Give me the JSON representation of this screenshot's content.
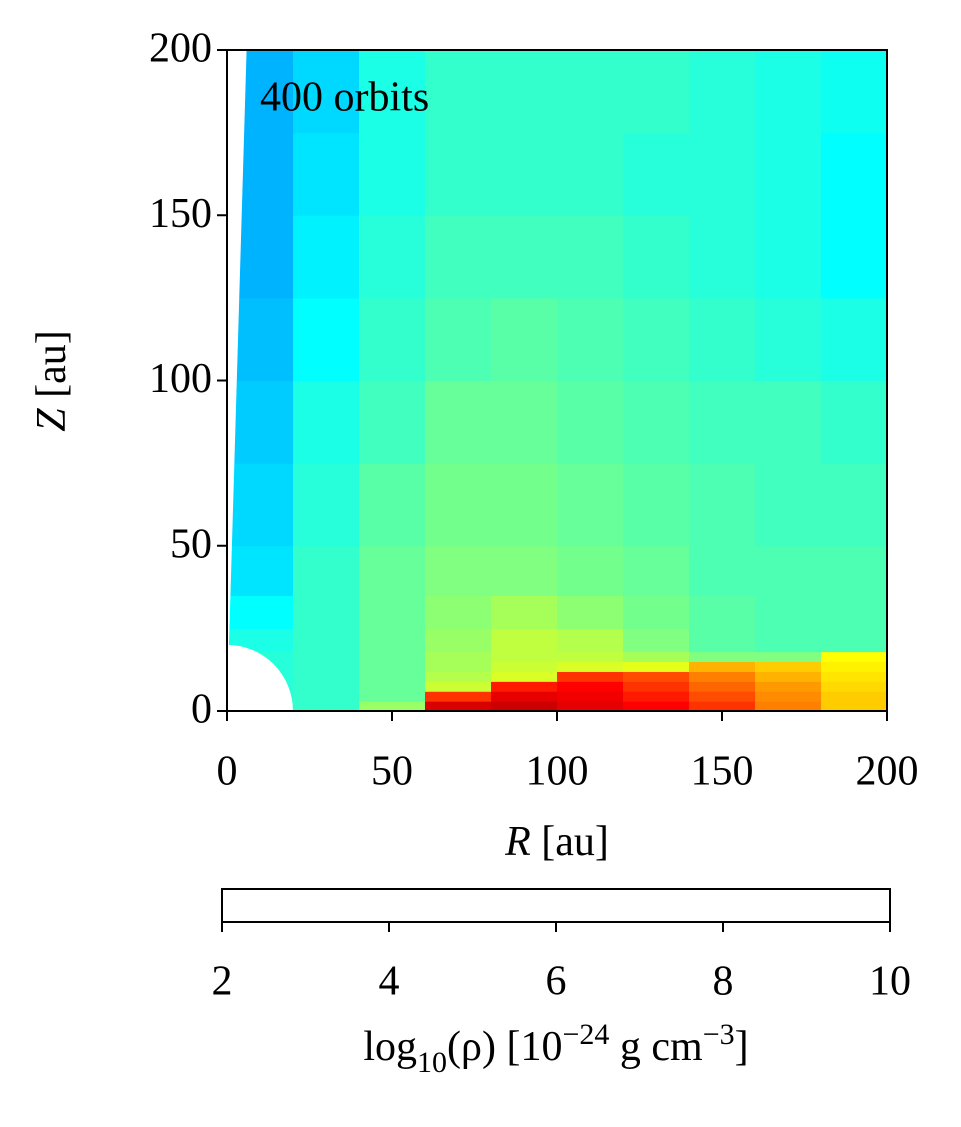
{
  "chart_data": {
    "type": "heatmap",
    "annotation": "400 orbits",
    "xlabel": [
      "R",
      " [au]"
    ],
    "ylabel": [
      "Z",
      " [au]"
    ],
    "xlim": [
      0,
      200
    ],
    "ylim": [
      0,
      200
    ],
    "xticks": [
      0,
      50,
      100,
      150,
      200
    ],
    "yticks": [
      0,
      50,
      100,
      150,
      200
    ],
    "colormap": "jet",
    "clim": [
      2,
      10
    ],
    "cticks": [
      2,
      4,
      6,
      8,
      10
    ],
    "colorbar_label": [
      "log",
      "10",
      "(ρ) [10",
      "−24",
      " g cm",
      "−3",
      "]"
    ],
    "inner_boundary_radius": 20,
    "polar_cutoff_deg": 1.7,
    "x_edges": [
      0,
      20,
      40,
      60,
      80,
      100,
      120,
      140,
      160,
      180,
      200
    ],
    "y_edges": [
      0,
      3,
      6,
      9,
      12,
      15,
      18,
      25,
      35,
      50,
      75,
      100,
      125,
      150,
      175,
      200
    ],
    "z": [
      [
        5.3,
        5.4,
        6.2,
        9.3,
        9.4,
        9.2,
        9.0,
        8.6,
        8.0,
        7.4
      ],
      [
        5.3,
        5.4,
        5.8,
        8.6,
        9.2,
        9.1,
        8.8,
        8.4,
        7.9,
        7.4
      ],
      [
        5.3,
        5.4,
        5.8,
        6.6,
        8.8,
        9.0,
        8.6,
        8.2,
        7.8,
        7.3
      ],
      [
        5.3,
        5.4,
        5.8,
        6.4,
        6.7,
        8.6,
        8.4,
        8.0,
        7.6,
        7.2
      ],
      [
        5.3,
        5.4,
        5.8,
        6.3,
        6.6,
        6.7,
        6.8,
        7.6,
        7.4,
        7.1
      ],
      [
        5.3,
        5.4,
        5.8,
        6.3,
        6.5,
        6.5,
        6.3,
        6.0,
        6.0,
        7.0
      ],
      [
        5.2,
        5.4,
        5.8,
        6.2,
        6.5,
        6.4,
        6.0,
        5.7,
        5.6,
        5.6
      ],
      [
        5.0,
        5.4,
        5.8,
        6.1,
        6.3,
        6.1,
        5.9,
        5.7,
        5.6,
        5.6
      ],
      [
        4.8,
        5.4,
        5.8,
        6.0,
        6.0,
        5.9,
        5.8,
        5.6,
        5.6,
        5.6
      ],
      [
        4.7,
        5.3,
        5.7,
        5.9,
        5.9,
        5.8,
        5.7,
        5.6,
        5.5,
        5.5
      ],
      [
        4.6,
        5.2,
        5.5,
        5.8,
        5.8,
        5.7,
        5.6,
        5.5,
        5.5,
        5.4
      ],
      [
        4.5,
        5.0,
        5.4,
        5.6,
        5.7,
        5.6,
        5.5,
        5.4,
        5.3,
        5.2
      ],
      [
        4.4,
        4.9,
        5.3,
        5.5,
        5.5,
        5.5,
        5.4,
        5.3,
        5.2,
        5.0
      ],
      [
        4.4,
        4.8,
        5.2,
        5.4,
        5.4,
        5.4,
        5.3,
        5.3,
        5.2,
        5.0
      ],
      [
        4.4,
        4.7,
        5.2,
        5.4,
        5.4,
        5.4,
        5.4,
        5.3,
        5.2,
        5.1
      ]
    ]
  }
}
